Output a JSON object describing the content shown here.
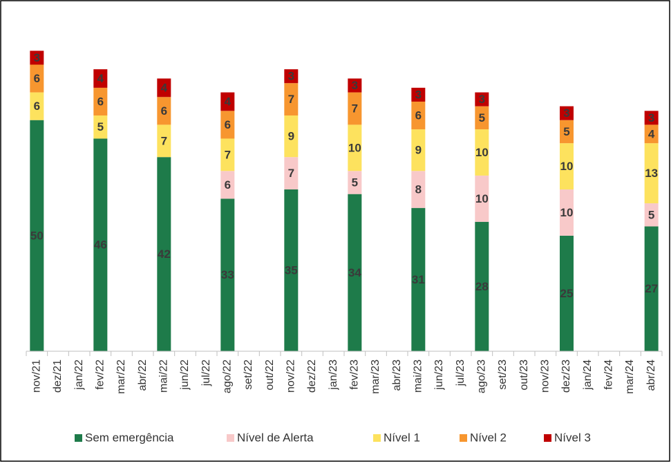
{
  "chart_data": {
    "type": "stacked_bar",
    "categories": [
      "nov/21",
      "dez/21",
      "jan/22",
      "fev/22",
      "mar/22",
      "abr/22",
      "mai/22",
      "jun/22",
      "jul/22",
      "ago/22",
      "set/22",
      "out/22",
      "nov/22",
      "dez/22",
      "jan/23",
      "fev/23",
      "mar/23",
      "abr/23",
      "mai/23",
      "jun/23",
      "jul/23",
      "ago/23",
      "set/23",
      "out/23",
      "nov/23",
      "dez/23",
      "jan/24",
      "fev/24",
      "mar/24",
      "abr/24"
    ],
    "series": [
      {
        "name": "Sem emergência",
        "color": "#1e7b4a",
        "values": [
          50,
          null,
          null,
          46,
          null,
          null,
          42,
          null,
          null,
          33,
          null,
          null,
          35,
          null,
          null,
          34,
          null,
          null,
          31,
          null,
          null,
          28,
          null,
          null,
          null,
          25,
          null,
          null,
          null,
          27
        ]
      },
      {
        "name": "Nível de Alerta",
        "color": "#f8c9c9",
        "values": [
          null,
          null,
          null,
          null,
          null,
          null,
          null,
          null,
          null,
          6,
          null,
          null,
          7,
          null,
          null,
          5,
          null,
          null,
          8,
          null,
          null,
          10,
          null,
          null,
          null,
          10,
          null,
          null,
          null,
          5
        ]
      },
      {
        "name": "Nível 1",
        "color": "#fde25e",
        "values": [
          6,
          null,
          null,
          5,
          null,
          null,
          7,
          null,
          null,
          7,
          null,
          null,
          9,
          null,
          null,
          10,
          null,
          null,
          9,
          null,
          null,
          10,
          null,
          null,
          null,
          10,
          null,
          null,
          null,
          13
        ]
      },
      {
        "name": "Nível 2",
        "color": "#f7962f",
        "values": [
          6,
          null,
          null,
          6,
          null,
          null,
          6,
          null,
          null,
          6,
          null,
          null,
          7,
          null,
          null,
          7,
          null,
          null,
          6,
          null,
          null,
          5,
          null,
          null,
          null,
          5,
          null,
          null,
          null,
          4
        ]
      },
      {
        "name": "Nível 3",
        "color": "#c00000",
        "values": [
          3,
          null,
          null,
          4,
          null,
          null,
          4,
          null,
          null,
          4,
          null,
          null,
          3,
          null,
          null,
          3,
          null,
          null,
          3,
          null,
          null,
          3,
          null,
          null,
          null,
          3,
          null,
          null,
          null,
          3
        ]
      }
    ],
    "ylim": [
      0,
      70
    ],
    "legend": "bottom"
  }
}
